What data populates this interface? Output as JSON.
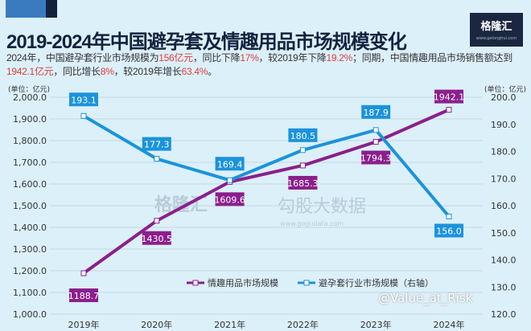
{
  "title": "2019-2024年中国避孕套及情趣用品市场规模变化",
  "subtitle": {
    "p1": "2024年，中国避孕套行业市场规模为",
    "v1": "156亿元",
    "p2": "，同比下降",
    "v2": "17%",
    "p3": "，较2019年下降",
    "v3": "19.2%",
    "p4": "；同期，中国情趣用品市场销售额达到",
    "v4": "1942.1亿元",
    "p5": "，同比增长",
    "v5": "8%",
    "p6": "，较2019年增长",
    "v6": "63.4%",
    "p7": "。"
  },
  "logo": {
    "name": "格隆汇",
    "url": "www.gelonghui.com"
  },
  "watermark": {
    "a": "格隆汇",
    "b": "勾股大数据",
    "c": "www.gogudata.com"
  },
  "footer": "@Value_at_Risk",
  "colors": {
    "purple": "#8b1f8c",
    "blue": "#1b93dc",
    "highlight": "#e03c3c"
  },
  "chart_data": {
    "type": "line",
    "categories": [
      "2019年",
      "2020年",
      "2021年",
      "2022年",
      "2023年",
      "2024年"
    ],
    "left_unit": "(单位：亿元)",
    "right_unit": "(单位：亿元)",
    "ylim_left": [
      1000,
      2000
    ],
    "ylim_right": [
      120,
      200
    ],
    "yticks_left": [
      "1,000.0",
      "1,100.0",
      "1,200.0",
      "1,300.0",
      "1,400.0",
      "1,500.0",
      "1,600.0",
      "1,700.0",
      "1,800.0",
      "1,900.0",
      "2,000.0"
    ],
    "yticks_right": [
      "120.0",
      "130.0",
      "140.0",
      "150.0",
      "160.0",
      "170.0",
      "180.0",
      "190.0",
      "200.0"
    ],
    "grid": true,
    "legend": "bottom-center",
    "series": [
      {
        "name": "情趣用品市场规模",
        "axis": "left",
        "color": "#8b1f8c",
        "values": [
          1188.7,
          1430.5,
          1609.6,
          1685.3,
          1794.3,
          1942.1
        ]
      },
      {
        "name": "避孕套行业市场规模（右轴）",
        "axis": "right",
        "color": "#1b93dc",
        "values": [
          193.1,
          177.3,
          169.4,
          180.5,
          187.9,
          156.0
        ]
      }
    ]
  }
}
